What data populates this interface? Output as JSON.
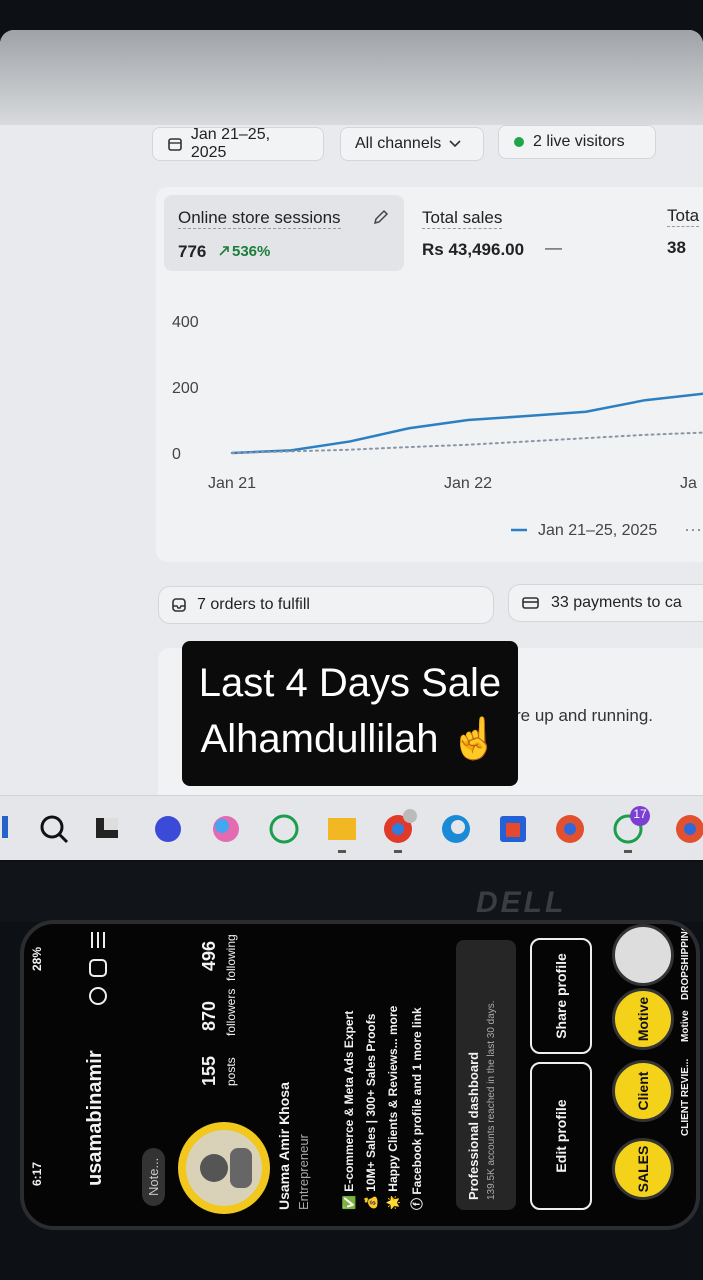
{
  "toolbar": {
    "date": "Jan 21–25, 2025",
    "channels": "All channels",
    "visitors": "2 live visitors"
  },
  "metrics": [
    {
      "label": "Online store sessions",
      "value": "776",
      "change": "536%"
    },
    {
      "label": "Total sales",
      "value": "Rs 43,496.00",
      "change": "—"
    },
    {
      "label": "Tota",
      "value": "38"
    }
  ],
  "chart_data": {
    "type": "line",
    "categories": [
      "Jan 21",
      null,
      null,
      null,
      "Jan 22",
      null,
      null,
      null,
      "Ja"
    ],
    "series": [
      {
        "name": "Jan 21–25, 2025",
        "color": "#2c7fc1",
        "values": [
          0,
          8,
          35,
          75,
          100,
          112,
          125,
          160,
          180
        ]
      },
      {
        "color": "#8a96a3",
        "values": [
          0,
          5,
          10,
          18,
          25,
          35,
          45,
          55,
          62
        ]
      }
    ],
    "ylim": [
      0,
      400
    ],
    "yticks": [
      0,
      200,
      400
    ]
  },
  "tasks": [
    "7 orders to fulfill",
    "33 payments to ca"
  ],
  "setup_text": "re up and running.",
  "caption": [
    "Last 4 Days Sale",
    "Alhamdullilah ☝️"
  ],
  "taskbar_badge": "17",
  "brand": "DELL",
  "phone": {
    "time": "6:17",
    "battery": "28%",
    "username": "usamabinamir",
    "note": "Note...",
    "stats": [
      {
        "value": "155",
        "label": "posts"
      },
      {
        "value": "870",
        "label": "followers"
      },
      {
        "value": "496",
        "label": "following"
      }
    ],
    "name": "Usama Amir Khosa",
    "category": "Entrepreneur",
    "bio": [
      "✅ E-commerce & Meta Ads Expert",
      "💰 10M+ Sales | 300+ Sales Proofs",
      "🌟 Happy Clients & Reviews... more",
      "ⓕ Facebook profile and 1 more link"
    ],
    "dashboard_title": "Professional dashboard",
    "dashboard_sub": "139.5K accounts reached in the last 30 days.",
    "buttons": [
      "Edit profile",
      "Share profile"
    ],
    "highlights": [
      "SALES",
      "Client",
      "Motive"
    ],
    "highlight_labels": [
      "CLIENT REVIE...",
      "Motive",
      "DROPSHIPPING"
    ]
  }
}
